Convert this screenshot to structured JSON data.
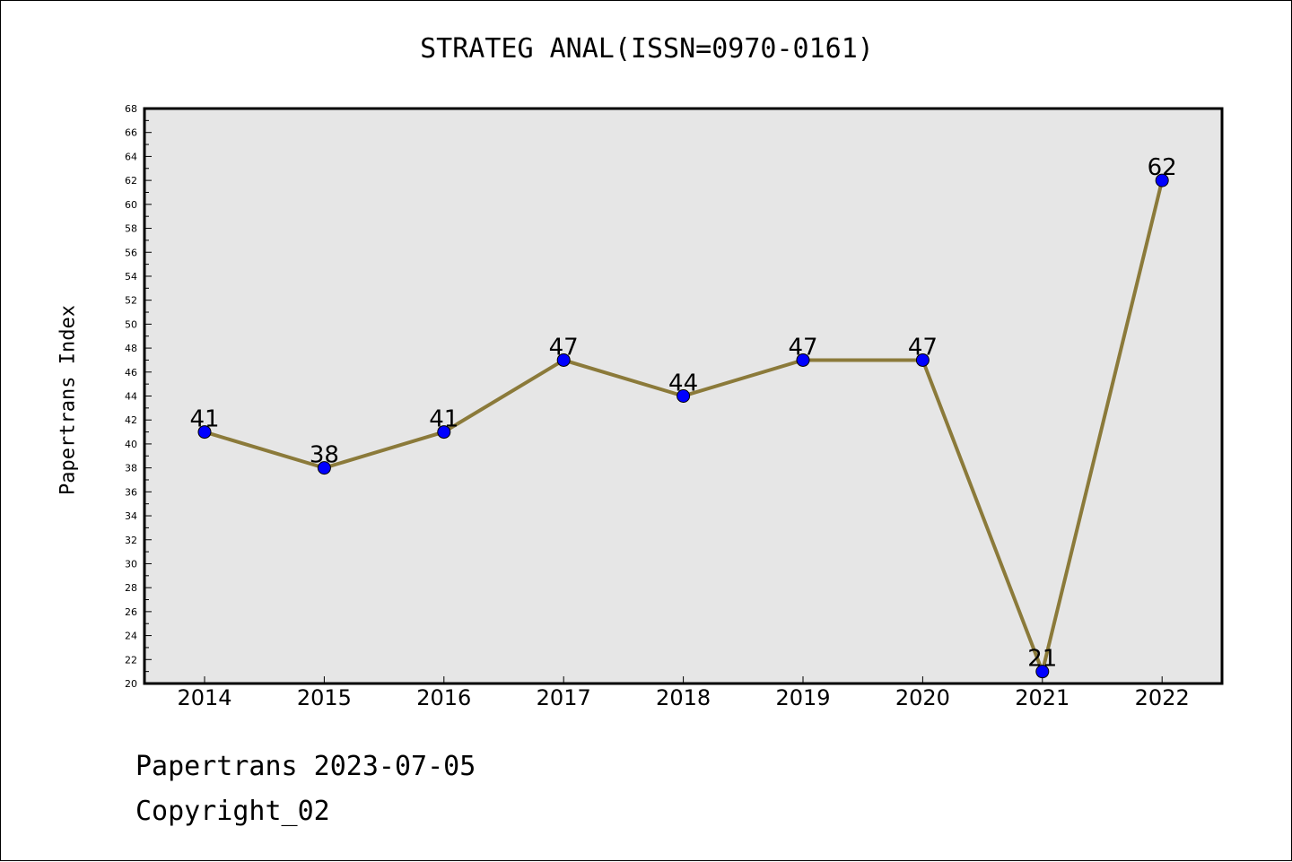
{
  "chart_data": {
    "type": "line",
    "title": "STRATEG ANAL(ISSN=0970-0161)",
    "xlabel": "",
    "ylabel": "Papertrans Index",
    "categories": [
      "2014",
      "2015",
      "2016",
      "2017",
      "2018",
      "2019",
      "2020",
      "2021",
      "2022"
    ],
    "series": [
      {
        "values": [
          41,
          38,
          41,
          47,
          44,
          47,
          47,
          21,
          62
        ]
      }
    ],
    "ylim": [
      20,
      68
    ],
    "y_tick_step": 2,
    "grid": false,
    "legend": "none",
    "data_labels": true,
    "colors": {
      "line": "#8b7a3a",
      "marker": "#0000ff",
      "plot_background": "#e6e6e6"
    }
  },
  "footer": {
    "line1": "Papertrans 2023-07-05",
    "line2": "Copyright_02"
  }
}
